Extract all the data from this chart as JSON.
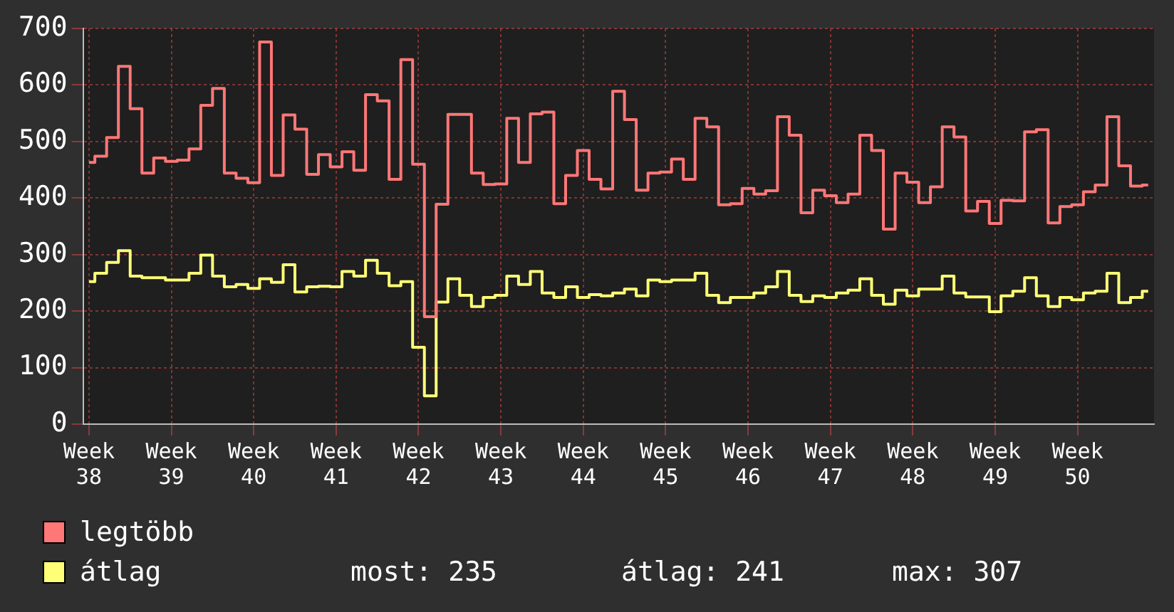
{
  "chart_data": {
    "type": "step",
    "categories": [
      "Week 38",
      null,
      null,
      null,
      null,
      null,
      null,
      "Week 39",
      null,
      null,
      null,
      null,
      null,
      null,
      "Week 40",
      null,
      null,
      null,
      null,
      null,
      null,
      "Week 41",
      null,
      null,
      null,
      null,
      null,
      null,
      "Week 42",
      null,
      null,
      null,
      null,
      null,
      null,
      "Week 43",
      null,
      null,
      null,
      null,
      null,
      null,
      "Week 44",
      null,
      null,
      null,
      null,
      null,
      null,
      "Week 45",
      null,
      null,
      null,
      null,
      null,
      null,
      "Week 46",
      null,
      null,
      null,
      null,
      null,
      null,
      "Week 47",
      null,
      null,
      null,
      null,
      null,
      null,
      "Week 48",
      null,
      null,
      null,
      null,
      null,
      null,
      "Week 49",
      null,
      null,
      null,
      null,
      null,
      null,
      "Week 50",
      null,
      null,
      null,
      null,
      null,
      null
    ],
    "series": [
      {
        "name": "legtöbb",
        "color": "#ff7777",
        "values": [
          463,
          474,
          507,
          633,
          558,
          444,
          471,
          465,
          467,
          487,
          564,
          594,
          444,
          435,
          427,
          676,
          440,
          547,
          522,
          442,
          477,
          455,
          482,
          449,
          583,
          572,
          433,
          645,
          460,
          190,
          389,
          548,
          548,
          444,
          424,
          425,
          541,
          463,
          549,
          552,
          390,
          440,
          484,
          433,
          416,
          589,
          539,
          414,
          444,
          446,
          469,
          433,
          541,
          526,
          388,
          390,
          417,
          407,
          413,
          544,
          511,
          374,
          414,
          404,
          392,
          407,
          511,
          484,
          345,
          444,
          428,
          392,
          420,
          526,
          508,
          377,
          394,
          355,
          396,
          395,
          517,
          521,
          356,
          385,
          388,
          411,
          423,
          544,
          457,
          421,
          423
        ]
      },
      {
        "name": "átlag",
        "color": "#ffff77",
        "values": [
          252,
          267,
          286,
          307,
          262,
          259,
          259,
          255,
          255,
          267,
          299,
          262,
          243,
          247,
          240,
          257,
          251,
          282,
          234,
          243,
          244,
          243,
          270,
          262,
          290,
          267,
          245,
          252,
          136,
          50,
          216,
          257,
          228,
          208,
          224,
          228,
          262,
          247,
          270,
          232,
          224,
          243,
          224,
          229,
          227,
          232,
          239,
          227,
          255,
          252,
          255,
          255,
          267,
          228,
          215,
          224,
          224,
          232,
          243,
          270,
          228,
          217,
          227,
          224,
          232,
          237,
          257,
          228,
          212,
          237,
          227,
          239,
          239,
          262,
          232,
          225,
          225,
          199,
          227,
          235,
          259,
          227,
          208,
          224,
          220,
          232,
          235,
          267,
          215,
          224,
          235
        ]
      }
    ],
    "ylim": [
      0,
      700
    ],
    "yticks": [
      0,
      100,
      200,
      300,
      400,
      500,
      600,
      700
    ],
    "grid": true,
    "legend": "bottom",
    "annotations": [
      "most: 235",
      "átlag: 241",
      "max: 307"
    ]
  }
}
